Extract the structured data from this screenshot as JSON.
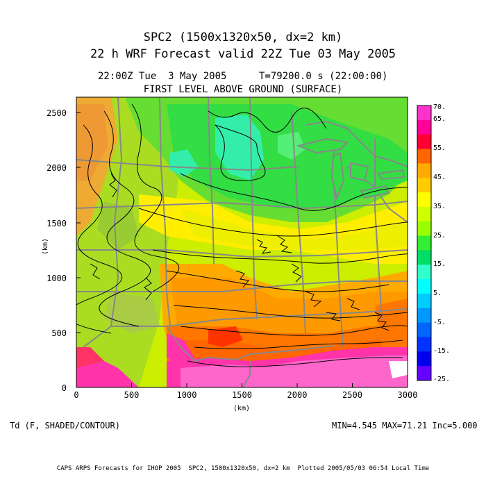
{
  "header": {
    "title_line1": "SPC2 (1500x1320x50, dx=2 km)",
    "title_line2": "22 h WRF Forecast valid 22Z Tue 03 May 2005",
    "time_line": "22:00Z Tue  3 May 2005",
    "t_line": "T=79200.0 s (22:00:00)",
    "level_line": "FIRST LEVEL ABOVE GROUND (SURFACE)"
  },
  "map": {
    "x_axis_label": "(km)",
    "y_axis_label": "(km)",
    "x_range": [
      0,
      3000
    ],
    "y_range": [
      0,
      2640
    ],
    "x_ticks": [
      "0",
      "500",
      "1000",
      "1500",
      "2000",
      "2500",
      "3000"
    ],
    "y_ticks": [
      "0",
      "500",
      "1000",
      "1500",
      "2000",
      "2500"
    ]
  },
  "colorbar": {
    "labels": [
      "70.",
      "65.",
      "55.",
      "45.",
      "35.",
      "25.",
      "15.",
      "5.",
      "-5.",
      "-15.",
      "-25."
    ],
    "colors": [
      "#ff33cc",
      "#ff0099",
      "#ff0033",
      "#ff6600",
      "#ffaa00",
      "#ffcc00",
      "#ffff00",
      "#ccff00",
      "#99ff00",
      "#33ee33",
      "#00dd66",
      "#33ffcc",
      "#00ffff",
      "#00ccff",
      "#0099ff",
      "#0066ff",
      "#0033ff",
      "#0000ee",
      "#6600ff"
    ]
  },
  "footer": {
    "field": "Td (F, SHADED/CONTOUR)",
    "stats": "MIN=4.545 MAX=71.21 Inc=5.000",
    "credit": "CAPS ARPS Forecasts for IHOP 2005  SPC2, 1500x1320x50, dx=2 km  Plotted 2005/05/03 06:54 Local Time"
  }
}
